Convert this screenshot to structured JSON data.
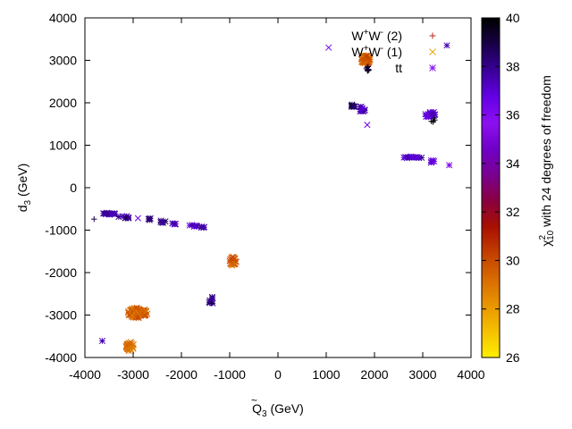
{
  "chart_data": {
    "type": "scatter",
    "xlabel": "Q̃₃ (GeV)",
    "xlabel_main": "Q",
    "xlabel_sub": "3",
    "xlabel_unit": " (GeV)",
    "ylabel_main": "d",
    "ylabel_sub": "3",
    "ylabel_unit": " (GeV)",
    "xlim": [
      -4000,
      4000
    ],
    "ylim": [
      -4000,
      4000
    ],
    "xticks": [
      "-4000",
      "-3000",
      "-2000",
      "-1000",
      "0",
      "1000",
      "2000",
      "3000",
      "4000"
    ],
    "yticks": [
      "-4000",
      "-3000",
      "-2000",
      "-1000",
      "0",
      "1000",
      "2000",
      "3000",
      "4000"
    ],
    "legend_position": "top-right",
    "legend": [
      {
        "label_main": "W",
        "sup1": "+",
        "mid": "W",
        "sup2": "-",
        "suffix": " (2)",
        "marker": "plus",
        "color": "#b5291c"
      },
      {
        "label_main": "W",
        "sup1": "+",
        "mid": "W",
        "sup2": "-",
        "suffix": " (1)",
        "marker": "cross",
        "color": "#e8a317"
      },
      {
        "label_main": "tt",
        "sup1": "",
        "mid": "",
        "sup2": "",
        "suffix": "",
        "marker": "star",
        "color": "#8a1cf0"
      }
    ],
    "colorbar": {
      "label": "χ²₁₀ with 24 degrees of freedom",
      "label_main": "χ",
      "label_sup": "2",
      "label_sub": "10",
      "label_rest": " with 24 degrees of freedom",
      "range": [
        26,
        40
      ],
      "ticks": [
        "26",
        "28",
        "30",
        "32",
        "34",
        "36",
        "38",
        "40"
      ],
      "palette": [
        "#ffee00",
        "#f5bf00",
        "#e89500",
        "#d86b00",
        "#c23f00",
        "#a81000",
        "#8a0040",
        "#7a0090",
        "#7000c8",
        "#8c10f0",
        "#6400e6",
        "#3a009a",
        "#1a004a",
        "#000000"
      ]
    },
    "clusters": [
      {
        "x": 1820,
        "y": 3020,
        "rx": 110,
        "ry": 110,
        "n": 60,
        "chi": 29.5,
        "marker": "cross"
      },
      {
        "x": 1870,
        "y": 2800,
        "rx": 60,
        "ry": 60,
        "n": 8,
        "chi": 39.5,
        "marker": "plus"
      },
      {
        "x": 1550,
        "y": 1920,
        "rx": 50,
        "ry": 40,
        "n": 8,
        "chi": 38.5,
        "marker": "star"
      },
      {
        "x": 1740,
        "y": 1850,
        "rx": 80,
        "ry": 60,
        "n": 12,
        "chi": 37.5,
        "marker": "star"
      },
      {
        "x": 3150,
        "y": 1730,
        "rx": 120,
        "ry": 80,
        "n": 18,
        "chi": 37.0,
        "marker": "star"
      },
      {
        "x": 3200,
        "y": 1600,
        "rx": 60,
        "ry": 60,
        "n": 5,
        "chi": 39.5,
        "marker": "plus"
      },
      {
        "x": 2800,
        "y": 710,
        "rx": 200,
        "ry": 25,
        "n": 14,
        "chi": 37.5,
        "marker": "star"
      },
      {
        "x": 3200,
        "y": 620,
        "rx": 100,
        "ry": 30,
        "n": 6,
        "chi": 37.0,
        "marker": "star"
      },
      {
        "x": -3500,
        "y": -610,
        "rx": 150,
        "ry": 25,
        "n": 14,
        "chi": 37.5,
        "marker": "star"
      },
      {
        "x": -3200,
        "y": -700,
        "rx": 120,
        "ry": 40,
        "n": 8,
        "chi": 38.0,
        "marker": "star"
      },
      {
        "x": -2650,
        "y": -740,
        "rx": 40,
        "ry": 25,
        "n": 4,
        "chi": 38.0,
        "marker": "star"
      },
      {
        "x": -2400,
        "y": -800,
        "rx": 70,
        "ry": 30,
        "n": 5,
        "chi": 38.5,
        "marker": "star"
      },
      {
        "x": -2150,
        "y": -850,
        "rx": 80,
        "ry": 20,
        "n": 5,
        "chi": 37.5,
        "marker": "star"
      },
      {
        "x": -1750,
        "y": -900,
        "rx": 100,
        "ry": 25,
        "n": 6,
        "chi": 37.0,
        "marker": "star"
      },
      {
        "x": -1560,
        "y": -930,
        "rx": 60,
        "ry": 20,
        "n": 4,
        "chi": 38.0,
        "marker": "star"
      },
      {
        "x": -930,
        "y": -1740,
        "rx": 70,
        "ry": 110,
        "n": 28,
        "chi": 29.5,
        "marker": "cross"
      },
      {
        "x": -1390,
        "y": -2650,
        "rx": 50,
        "ry": 120,
        "n": 8,
        "chi": 38.0,
        "marker": "star"
      },
      {
        "x": -2920,
        "y": -2950,
        "rx": 220,
        "ry": 120,
        "n": 90,
        "chi": 29.5,
        "marker": "cross"
      },
      {
        "x": -3070,
        "y": -3740,
        "rx": 90,
        "ry": 110,
        "n": 30,
        "chi": 29.0,
        "marker": "cross"
      }
    ],
    "points": [
      {
        "x": 1050,
        "y": 3300,
        "chi": 36.5,
        "marker": "cross"
      },
      {
        "x": 3500,
        "y": 3350,
        "chi": 37.5,
        "marker": "star"
      },
      {
        "x": 1850,
        "y": 1480,
        "chi": 36.5,
        "marker": "cross"
      },
      {
        "x": 3550,
        "y": 530,
        "chi": 36.0,
        "marker": "star"
      },
      {
        "x": -3810,
        "y": -740,
        "chi": 39.0,
        "marker": "plus"
      },
      {
        "x": -2900,
        "y": -720,
        "chi": 36.5,
        "marker": "cross"
      },
      {
        "x": -3640,
        "y": -3610,
        "chi": 37.5,
        "marker": "star"
      },
      {
        "x": -1380,
        "y": -2720,
        "chi": 39.5,
        "marker": "plus"
      }
    ]
  }
}
